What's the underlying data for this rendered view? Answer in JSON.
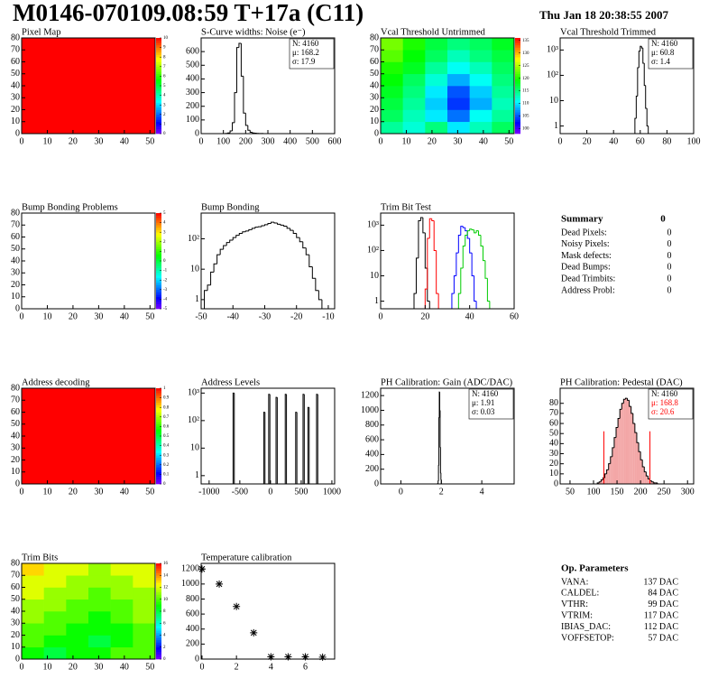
{
  "header": {
    "title": "M0146-070109.08:59 T+17a (C11)",
    "date": "Thu Jan 18 20:38:55 2007"
  },
  "chart_data": [
    {
      "type": "heatmap",
      "title": "Pixel Map",
      "xlim": [
        0,
        52
      ],
      "ylim": [
        0,
        80
      ],
      "xticks": [
        0,
        10,
        20,
        30,
        40,
        50
      ],
      "yticks": [
        0,
        10,
        20,
        30,
        40,
        50,
        60,
        70,
        80
      ],
      "zlim": [
        0,
        10
      ],
      "zticks": [
        0,
        1,
        2,
        3,
        4,
        5,
        6,
        7,
        8,
        9,
        10
      ],
      "values": [
        [
          10
        ]
      ]
    },
    {
      "type": "histogram",
      "title": "S-Curve widths: Noise (e⁻)",
      "xlim": [
        0,
        600
      ],
      "ylim": [
        0,
        700
      ],
      "xticks": [
        0,
        100,
        200,
        300,
        400,
        500,
        600
      ],
      "yticks": [
        0,
        100,
        200,
        300,
        400,
        500,
        600
      ],
      "bins": [
        100,
        110,
        120,
        130,
        140,
        150,
        160,
        170,
        180,
        190,
        200,
        210,
        220,
        230,
        240,
        250,
        260,
        270,
        280,
        290,
        300
      ],
      "values": [
        0,
        2,
        5,
        20,
        80,
        300,
        630,
        660,
        420,
        150,
        60,
        25,
        10,
        5,
        3,
        2,
        1,
        1,
        0,
        0
      ],
      "color": "#000000",
      "stats": [
        "N: 4160",
        "μ: 168.2",
        "σ: 17.9"
      ]
    },
    {
      "type": "heatmap",
      "title": "Vcal Threshold Untrimmed",
      "xlim": [
        0,
        52
      ],
      "ylim": [
        0,
        80
      ],
      "xticks": [
        0,
        10,
        20,
        30,
        40,
        50
      ],
      "yticks": [
        0,
        10,
        20,
        30,
        40,
        50,
        60,
        70,
        80
      ],
      "zlim": [
        98,
        136
      ],
      "zticks": [
        100,
        105,
        110,
        115,
        120,
        125,
        130,
        135
      ],
      "values": [
        [
          114,
          112,
          115,
          110,
          113,
          116
        ],
        [
          116,
          113,
          110,
          106,
          111,
          114
        ],
        [
          117,
          114,
          109,
          104,
          108,
          113
        ],
        [
          118,
          115,
          110,
          105,
          109,
          114
        ],
        [
          119,
          116,
          112,
          108,
          111,
          115
        ],
        [
          120,
          118,
          114,
          111,
          113,
          116
        ],
        [
          122,
          119,
          116,
          113,
          115,
          117
        ],
        [
          123,
          120,
          117,
          115,
          116,
          118
        ]
      ]
    },
    {
      "type": "histogram",
      "title": "Vcal Threshold Trimmed",
      "yscale": "log",
      "xlim": [
        0,
        100
      ],
      "ylim": [
        0.5,
        3000
      ],
      "xticks": [
        0,
        20,
        40,
        60,
        80,
        100
      ],
      "yticks": [
        1,
        10,
        {
          "value": 100,
          "label": "10²"
        },
        {
          "value": 1000,
          "label": "10³"
        }
      ],
      "bins": [
        56,
        57,
        58,
        59,
        60,
        61,
        62,
        63,
        64,
        65,
        66
      ],
      "values": [
        2,
        15,
        200,
        900,
        1400,
        1200,
        300,
        40,
        5,
        1
      ],
      "color": "#000000",
      "stats": [
        "N: 4160",
        "μ: 60.8",
        "σ:  1.4"
      ]
    },
    {
      "type": "heatmap",
      "title": "Bump Bonding Problems",
      "xlim": [
        0,
        52
      ],
      "ylim": [
        0,
        80
      ],
      "xticks": [
        0,
        10,
        20,
        30,
        40,
        50
      ],
      "yticks": [
        0,
        10,
        20,
        30,
        40,
        50,
        60,
        70,
        80
      ],
      "zlim": [
        -5,
        5
      ],
      "zticks": [
        -5,
        -4,
        -3,
        -2,
        -1,
        0,
        1,
        2,
        3,
        4,
        5
      ],
      "values": []
    },
    {
      "type": "histogram",
      "title": "Bump Bonding",
      "yscale": "log",
      "xlim": [
        -50,
        -8
      ],
      "ylim": [
        0.5,
        700
      ],
      "xticks": [
        -50,
        -40,
        -30,
        -20,
        -10
      ],
      "yticks": [
        1,
        10,
        {
          "value": 100,
          "label": "10²"
        }
      ],
      "bins": [
        -49,
        -48,
        -47,
        -46,
        -45,
        -44,
        -43,
        -42,
        -41,
        -40,
        -39,
        -38,
        -37,
        -36,
        -35,
        -34,
        -33,
        -32,
        -31,
        -30,
        -29,
        -28,
        -27,
        -26,
        -25,
        -24,
        -23,
        -22,
        -21,
        -20,
        -19,
        -18,
        -17,
        -16,
        -15,
        -14,
        -13,
        -12
      ],
      "values": [
        2,
        3,
        8,
        15,
        30,
        45,
        60,
        75,
        90,
        110,
        130,
        150,
        170,
        180,
        200,
        220,
        240,
        250,
        270,
        290,
        320,
        350,
        330,
        300,
        280,
        260,
        220,
        190,
        150,
        110,
        80,
        50,
        30,
        12,
        5,
        2,
        1
      ],
      "color": "#000000"
    },
    {
      "type": "histogram",
      "title": "Trim Bit Test",
      "yscale": "log",
      "xlim": [
        0,
        60
      ],
      "ylim": [
        0.5,
        3000
      ],
      "xticks": [
        0,
        20,
        40,
        60
      ],
      "yticks": [
        1,
        10,
        {
          "value": 100,
          "label": "10²"
        },
        {
          "value": 1000,
          "label": "10³"
        }
      ],
      "bins": [
        14,
        15,
        16,
        17,
        18,
        19,
        20,
        21,
        22,
        23,
        24,
        25,
        26,
        27,
        28,
        29,
        30,
        31,
        32,
        33,
        34,
        35,
        36,
        37,
        38,
        39,
        40,
        41,
        42,
        43,
        44,
        45,
        46,
        47,
        48,
        49,
        50
      ],
      "series": [
        {
          "color": "#000000",
          "values": [
            0,
            2,
            50,
            1500,
            2000,
            500,
            20,
            1,
            0,
            0,
            0,
            0,
            0,
            0,
            0,
            0,
            0,
            0,
            0,
            0,
            0,
            0,
            0,
            0,
            0,
            0,
            0,
            0,
            0,
            0,
            0,
            0,
            0,
            0,
            0,
            0
          ]
        },
        {
          "color": "#ff0000",
          "values": [
            0,
            0,
            0,
            0,
            0,
            0,
            3,
            300,
            1800,
            1500,
            100,
            2,
            0,
            0,
            0,
            0,
            0,
            0,
            0,
            0,
            0,
            0,
            0,
            0,
            0,
            0,
            0,
            0,
            0,
            0,
            0,
            0,
            0,
            0,
            0,
            0
          ]
        },
        {
          "color": "#0000ff",
          "values": [
            0,
            0,
            0,
            0,
            0,
            0,
            0,
            0,
            0,
            0,
            0,
            0,
            0,
            0,
            0,
            0,
            0,
            0,
            2,
            10,
            80,
            400,
            900,
            800,
            600,
            300,
            80,
            10,
            1,
            0,
            0,
            0,
            0,
            0,
            0,
            0
          ]
        },
        {
          "color": "#00cc00",
          "values": [
            0,
            0,
            0,
            0,
            0,
            0,
            0,
            0,
            0,
            0,
            0,
            0,
            0,
            0,
            0,
            0,
            0,
            0,
            0,
            0,
            0,
            2,
            20,
            150,
            400,
            600,
            700,
            650,
            500,
            600,
            400,
            150,
            40,
            8,
            1,
            0
          ]
        }
      ]
    },
    {
      "type": "heatmap",
      "title": "Address decoding",
      "xlim": [
        0,
        52
      ],
      "ylim": [
        0,
        80
      ],
      "xticks": [
        0,
        10,
        20,
        30,
        40,
        50
      ],
      "yticks": [
        0,
        10,
        20,
        30,
        40,
        50,
        60,
        70,
        80
      ],
      "zlim": [
        0,
        1
      ],
      "zticks": [
        0,
        0.1,
        0.2,
        0.3,
        0.4,
        0.5,
        0.6,
        0.7,
        0.8,
        0.9,
        1
      ],
      "values": [
        [
          1
        ]
      ]
    },
    {
      "type": "histogram",
      "title": "Address Levels",
      "yscale": "log",
      "xlim": [
        -1130,
        1045
      ],
      "ylim": [
        0.5,
        1500
      ],
      "xticks": [
        -1000,
        -500,
        0,
        500,
        1000
      ],
      "yticks": [
        1,
        10,
        {
          "value": 100,
          "label": "10²"
        },
        {
          "value": 1000,
          "label": "10³"
        }
      ],
      "bins": [
        -1130,
        -610,
        -590,
        -110,
        -90,
        -30,
        -10,
        90,
        110,
        240,
        260,
        410,
        430,
        530,
        550,
        610,
        630,
        750,
        770,
        1045
      ],
      "values": [
        0,
        1000,
        0,
        200,
        0,
        900,
        0,
        700,
        0,
        900,
        0,
        200,
        0,
        900,
        0,
        300,
        0,
        900,
        0
      ],
      "color": "#000000"
    },
    {
      "type": "histogram",
      "title": "PH Calibration: Gain (ADC/DAC)",
      "xlim": [
        -1,
        5.6
      ],
      "ylim": [
        0,
        1300
      ],
      "xticks": [
        0,
        2,
        4
      ],
      "yticks": [
        0,
        200,
        400,
        600,
        800,
        1000,
        1200
      ],
      "bins": [
        1.82,
        1.84,
        1.86,
        1.88,
        1.9,
        1.92,
        1.94,
        1.96,
        1.98,
        2.0
      ],
      "values": [
        5,
        40,
        250,
        900,
        1250,
        1000,
        500,
        150,
        60
      ],
      "color": "#000000",
      "stats": [
        "N: 4160",
        "μ: 1.91",
        "σ: 0.03"
      ]
    },
    {
      "type": "histogram",
      "title": "PH Calibration: Pedestal (DAC)",
      "xlim": [
        29,
        313
      ],
      "ylim": [
        0,
        95
      ],
      "xticks": [
        50,
        100,
        150,
        200,
        250,
        300
      ],
      "yticks": [
        0,
        10,
        20,
        30,
        40,
        50,
        60,
        70,
        80
      ],
      "bins": [
        108,
        112,
        116,
        120,
        124,
        128,
        132,
        136,
        140,
        144,
        148,
        152,
        156,
        160,
        164,
        168,
        172,
        176,
        180,
        184,
        188,
        192,
        196,
        200,
        204,
        208,
        212,
        216,
        220,
        224,
        228,
        232,
        236,
        240,
        244,
        248
      ],
      "values": [
        1,
        2,
        4,
        6,
        10,
        14,
        20,
        27,
        36,
        46,
        56,
        65,
        74,
        80,
        84,
        85,
        83,
        77,
        70,
        60,
        51,
        41,
        32,
        24,
        17,
        12,
        8,
        5,
        3,
        2,
        1,
        1,
        0,
        0,
        0
      ],
      "color": "#000000",
      "fill_color": "#f3a6a6",
      "fit_range": [
        122,
        220
      ],
      "fit_color": "#ff0000",
      "stats": [
        "N: 4160",
        "μ: 168.8",
        "σ: 20.6"
      ],
      "stats_colors": [
        "#000000",
        "#ff0000",
        "#ff0000"
      ]
    },
    {
      "type": "heatmap",
      "title": "Trim Bits",
      "xlim": [
        0,
        52
      ],
      "ylim": [
        0,
        80
      ],
      "xticks": [
        0,
        10,
        20,
        30,
        40,
        50
      ],
      "yticks": [
        0,
        10,
        20,
        30,
        40,
        50,
        60,
        70,
        80
      ],
      "zlim": [
        0,
        16
      ],
      "zticks": [
        0,
        2,
        4,
        6,
        8,
        10,
        12,
        14,
        16
      ],
      "values": [
        [
          9,
          8,
          9,
          9,
          10,
          10
        ],
        [
          10,
          9,
          9,
          8,
          9,
          10
        ],
        [
          10,
          10,
          9,
          9,
          9,
          10
        ],
        [
          11,
          10,
          10,
          9,
          10,
          11
        ],
        [
          11,
          11,
          10,
          10,
          10,
          11
        ],
        [
          12,
          11,
          11,
          10,
          11,
          11
        ],
        [
          12,
          12,
          11,
          11,
          11,
          12
        ],
        [
          13,
          12,
          12,
          11,
          12,
          12
        ]
      ]
    },
    {
      "type": "scatter",
      "title": "Temperature calibration",
      "xlim": [
        -0.05,
        7.7
      ],
      "ylim": [
        0,
        1275
      ],
      "xticks": [
        0,
        2,
        4,
        6
      ],
      "yticks": [
        0,
        200,
        400,
        600,
        800,
        1000,
        1200
      ],
      "x": [
        0,
        1,
        2,
        3,
        4,
        5,
        6,
        7
      ],
      "values": [
        1200,
        1000,
        700,
        350,
        30,
        30,
        30,
        25
      ],
      "color": "#000000"
    }
  ],
  "summary": {
    "title": "Summary",
    "total": 0,
    "rows": [
      {
        "label": "Dead Pixels:",
        "value": 0
      },
      {
        "label": "Noisy Pixels:",
        "value": 0
      },
      {
        "label": "Mask defects:",
        "value": 0
      },
      {
        "label": "Dead Bumps:",
        "value": 0
      },
      {
        "label": "Dead Trimbits:",
        "value": 0
      },
      {
        "label": "Address Probl:",
        "value": 0
      }
    ]
  },
  "op_parameters": {
    "title": "Op. Parameters",
    "rows": [
      {
        "label": "VANA:",
        "value": "137 DAC"
      },
      {
        "label": "CALDEL:",
        "value": "84 DAC"
      },
      {
        "label": "VTHR:",
        "value": "99 DAC"
      },
      {
        "label": "VTRIM:",
        "value": "117 DAC"
      },
      {
        "label": "IBIAS_DAC:",
        "value": "112 DAC"
      },
      {
        "label": "VOFFSETOP:",
        "value": "57 DAC"
      }
    ]
  }
}
